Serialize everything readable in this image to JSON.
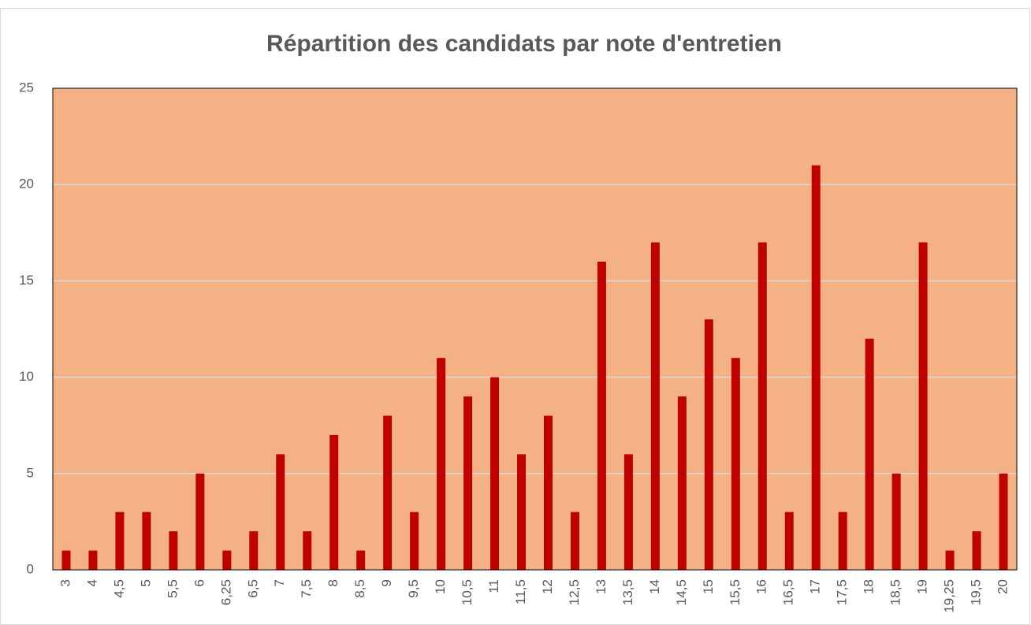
{
  "chart_data": {
    "type": "bar",
    "title": "Répartition des candidats par note d'entretien",
    "categories": [
      "3",
      "4",
      "4,5",
      "5",
      "5,5",
      "6",
      "6,25",
      "6,5",
      "7",
      "7,5",
      "8",
      "8,5",
      "9",
      "9,5",
      "10",
      "10,5",
      "11",
      "11,5",
      "12",
      "12,5",
      "13",
      "13,5",
      "14",
      "14,5",
      "15",
      "15,5",
      "16",
      "16,5",
      "17",
      "17,5",
      "18",
      "18,5",
      "19",
      "19,25",
      "19,5",
      "20"
    ],
    "values": [
      1,
      1,
      3,
      3,
      2,
      5,
      1,
      2,
      6,
      2,
      7,
      1,
      8,
      3,
      11,
      9,
      10,
      6,
      8,
      3,
      16,
      6,
      17,
      9,
      13,
      11,
      17,
      3,
      21,
      3,
      12,
      5,
      17,
      1,
      2,
      5
    ],
    "color": "#c00000",
    "plot_background": "#f4b183",
    "ylim": [
      0,
      25
    ],
    "yticks": [
      0,
      5,
      10,
      15,
      20,
      25
    ],
    "grid": true
  }
}
